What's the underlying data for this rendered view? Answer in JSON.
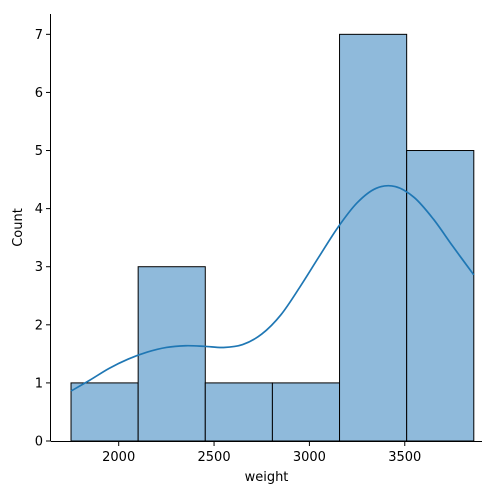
{
  "chart_data": {
    "type": "bar",
    "subtype": "histogram-with-kde",
    "xlabel": "weight",
    "ylabel": "Count",
    "xlim": [
      1645,
      3905
    ],
    "ylim": [
      0,
      7.35
    ],
    "xticks": [
      2000,
      2500,
      3000,
      3500
    ],
    "yticks": [
      0,
      1,
      2,
      3,
      4,
      5,
      6,
      7
    ],
    "bins": [
      {
        "start": 1750,
        "end": 2102,
        "count": 1
      },
      {
        "start": 2102,
        "end": 2454,
        "count": 3
      },
      {
        "start": 2454,
        "end": 2806,
        "count": 1
      },
      {
        "start": 2806,
        "end": 3158,
        "count": 1
      },
      {
        "start": 3158,
        "end": 3510,
        "count": 7
      },
      {
        "start": 3510,
        "end": 3862,
        "count": 5
      }
    ],
    "kde": {
      "x": [
        1750,
        1850,
        1950,
        2050,
        2150,
        2250,
        2350,
        2450,
        2550,
        2650,
        2750,
        2850,
        2950,
        3050,
        3150,
        3250,
        3350,
        3450,
        3550,
        3650,
        3750,
        3862
      ],
      "y": [
        0.86,
        1.05,
        1.25,
        1.41,
        1.53,
        1.61,
        1.64,
        1.63,
        1.61,
        1.66,
        1.84,
        2.17,
        2.65,
        3.17,
        3.68,
        4.1,
        4.35,
        4.38,
        4.19,
        3.82,
        3.36,
        2.86
      ]
    },
    "bar_fill": "#8fbadb",
    "bar_edge": "#000000",
    "line_color": "#1f77b4",
    "grid": false
  }
}
